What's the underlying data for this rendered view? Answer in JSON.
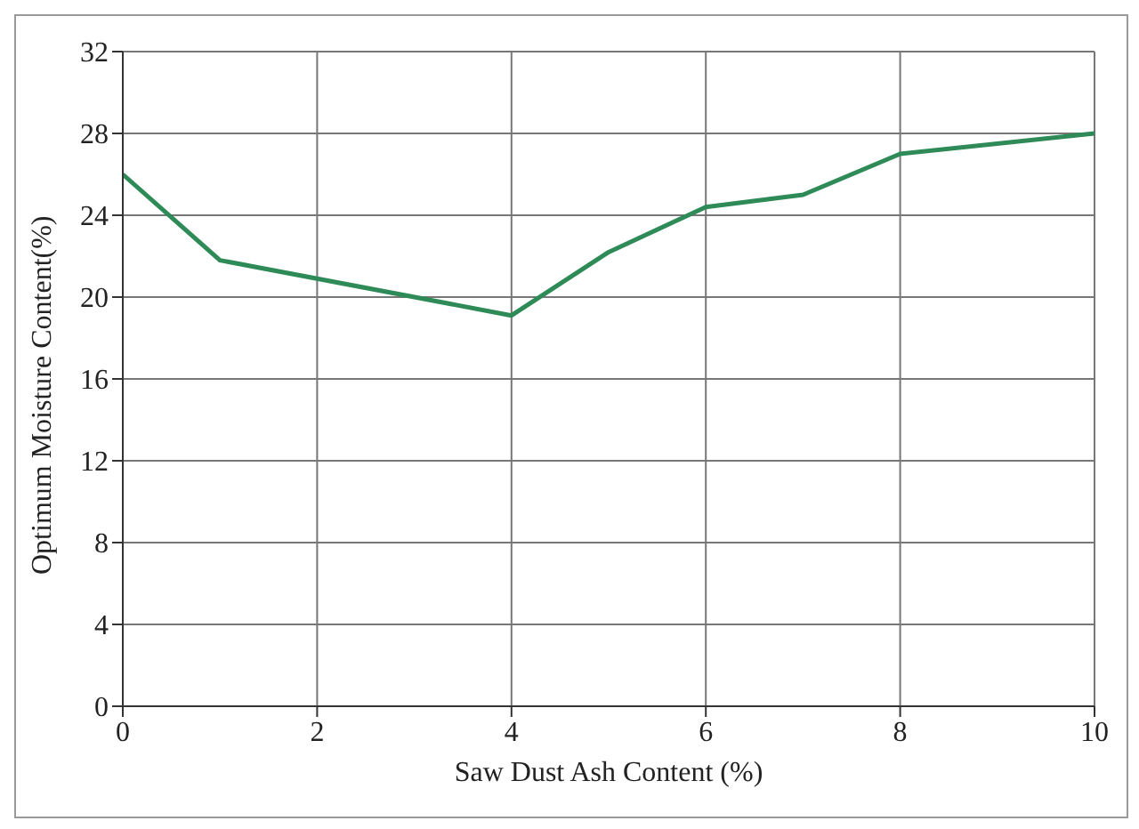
{
  "chart_data": {
    "type": "line",
    "xlabel": "Saw Dust Ash Content (%)",
    "ylabel": "Optimum Moisture Content(%)",
    "x": [
      0,
      1,
      4,
      5,
      6,
      7,
      8,
      10
    ],
    "series": [
      {
        "color": "#2e8b57",
        "values": [
          26,
          21.8,
          19.1,
          22.2,
          24.4,
          25,
          27,
          28
        ]
      }
    ],
    "xlim": [
      0,
      10
    ],
    "xticks": [
      0,
      2,
      4,
      6,
      8,
      10
    ],
    "ylim": [
      0,
      32
    ],
    "yticks": [
      0,
      4,
      8,
      12,
      16,
      20,
      24,
      28,
      32
    ],
    "grid": true,
    "marker": "none",
    "line_style": "solid"
  }
}
